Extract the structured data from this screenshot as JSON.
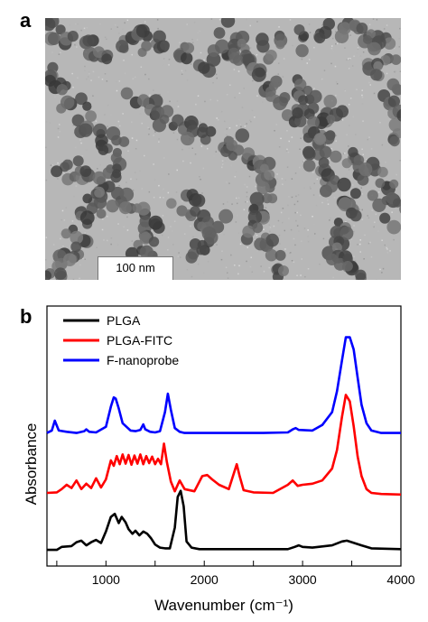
{
  "panels": {
    "a": {
      "letter": "a",
      "scale_bar_label": "100 nm"
    },
    "b": {
      "letter": "b"
    }
  },
  "chart_data": {
    "type": "line",
    "title": "",
    "xlabel": "Wavenumber (cm⁻¹)",
    "ylabel": "Absorbance",
    "xlim": [
      400,
      4000
    ],
    "x_ticks": [
      500,
      1000,
      1500,
      2000,
      2500,
      3000,
      3500,
      4000
    ],
    "x_tick_labels": [
      "",
      "1000",
      "",
      "2000",
      "",
      "3000",
      "",
      "4000"
    ],
    "y_ticks_shown": false,
    "legend_position": "top-left",
    "series": [
      {
        "name": "PLGA",
        "color": "#000000",
        "x": [
          400,
          500,
          550,
          650,
          700,
          750,
          800,
          850,
          900,
          950,
          1000,
          1050,
          1090,
          1130,
          1160,
          1200,
          1230,
          1270,
          1300,
          1340,
          1380,
          1420,
          1460,
          1500,
          1550,
          1600,
          1650,
          1700,
          1730,
          1760,
          1790,
          1820,
          1870,
          1950,
          2100,
          2500,
          2850,
          2920,
          2960,
          3000,
          3100,
          3300,
          3400,
          3450,
          3500,
          3600,
          3700,
          4000
        ],
        "y": [
          0.01,
          0.01,
          0.05,
          0.06,
          0.11,
          0.13,
          0.07,
          0.11,
          0.14,
          0.1,
          0.25,
          0.44,
          0.48,
          0.36,
          0.44,
          0.37,
          0.28,
          0.22,
          0.26,
          0.2,
          0.25,
          0.22,
          0.16,
          0.08,
          0.04,
          0.03,
          0.03,
          0.3,
          0.7,
          0.78,
          0.58,
          0.12,
          0.04,
          0.02,
          0.02,
          0.02,
          0.02,
          0.05,
          0.07,
          0.05,
          0.04,
          0.07,
          0.12,
          0.13,
          0.11,
          0.07,
          0.03,
          0.02
        ]
      },
      {
        "name": "PLGA-FITC",
        "color": "#ff0000",
        "x": [
          400,
          500,
          550,
          600,
          650,
          700,
          750,
          800,
          850,
          900,
          950,
          1000,
          1050,
          1080,
          1110,
          1140,
          1170,
          1200,
          1230,
          1260,
          1290,
          1320,
          1350,
          1380,
          1410,
          1440,
          1470,
          1500,
          1530,
          1560,
          1590,
          1620,
          1660,
          1700,
          1750,
          1800,
          1900,
          1980,
          2030,
          2080,
          2150,
          2250,
          2330,
          2360,
          2400,
          2500,
          2700,
          2850,
          2900,
          2920,
          2950,
          3000,
          3100,
          3200,
          3300,
          3350,
          3400,
          3440,
          3480,
          3520,
          3560,
          3600,
          3650,
          3700,
          3800,
          4000
        ],
        "y": [
          0.05,
          0.06,
          0.12,
          0.2,
          0.14,
          0.28,
          0.12,
          0.22,
          0.14,
          0.32,
          0.15,
          0.3,
          0.65,
          0.55,
          0.73,
          0.58,
          0.76,
          0.59,
          0.75,
          0.57,
          0.74,
          0.59,
          0.76,
          0.58,
          0.73,
          0.6,
          0.72,
          0.58,
          0.68,
          0.58,
          0.96,
          0.62,
          0.26,
          0.08,
          0.28,
          0.12,
          0.08,
          0.36,
          0.38,
          0.3,
          0.2,
          0.12,
          0.58,
          0.36,
          0.1,
          0.06,
          0.05,
          0.2,
          0.28,
          0.24,
          0.18,
          0.2,
          0.22,
          0.28,
          0.5,
          0.84,
          1.45,
          1.86,
          1.74,
          1.28,
          0.72,
          0.36,
          0.12,
          0.05,
          0.03,
          0.02
        ]
      },
      {
        "name": "F-nanoprobe",
        "color": "#0000ff",
        "x": [
          400,
          450,
          480,
          520,
          600,
          700,
          780,
          800,
          830,
          900,
          1000,
          1050,
          1080,
          1100,
          1130,
          1170,
          1250,
          1300,
          1350,
          1380,
          1400,
          1450,
          1500,
          1550,
          1600,
          1630,
          1660,
          1700,
          1750,
          1800,
          2000,
          2300,
          2600,
          2850,
          2900,
          2930,
          2960,
          3100,
          3200,
          3300,
          3350,
          3400,
          3440,
          3480,
          3520,
          3560,
          3600,
          3650,
          3700,
          3800,
          4000
        ],
        "y": [
          0.02,
          0.06,
          0.22,
          0.06,
          0.04,
          0.02,
          0.05,
          0.08,
          0.04,
          0.03,
          0.12,
          0.45,
          0.6,
          0.58,
          0.42,
          0.18,
          0.06,
          0.05,
          0.07,
          0.16,
          0.08,
          0.04,
          0.03,
          0.05,
          0.36,
          0.66,
          0.4,
          0.1,
          0.04,
          0.02,
          0.02,
          0.02,
          0.02,
          0.03,
          0.08,
          0.1,
          0.07,
          0.06,
          0.15,
          0.36,
          0.7,
          1.2,
          1.58,
          1.58,
          1.38,
          0.92,
          0.48,
          0.18,
          0.06,
          0.02,
          0.02
        ]
      }
    ]
  }
}
